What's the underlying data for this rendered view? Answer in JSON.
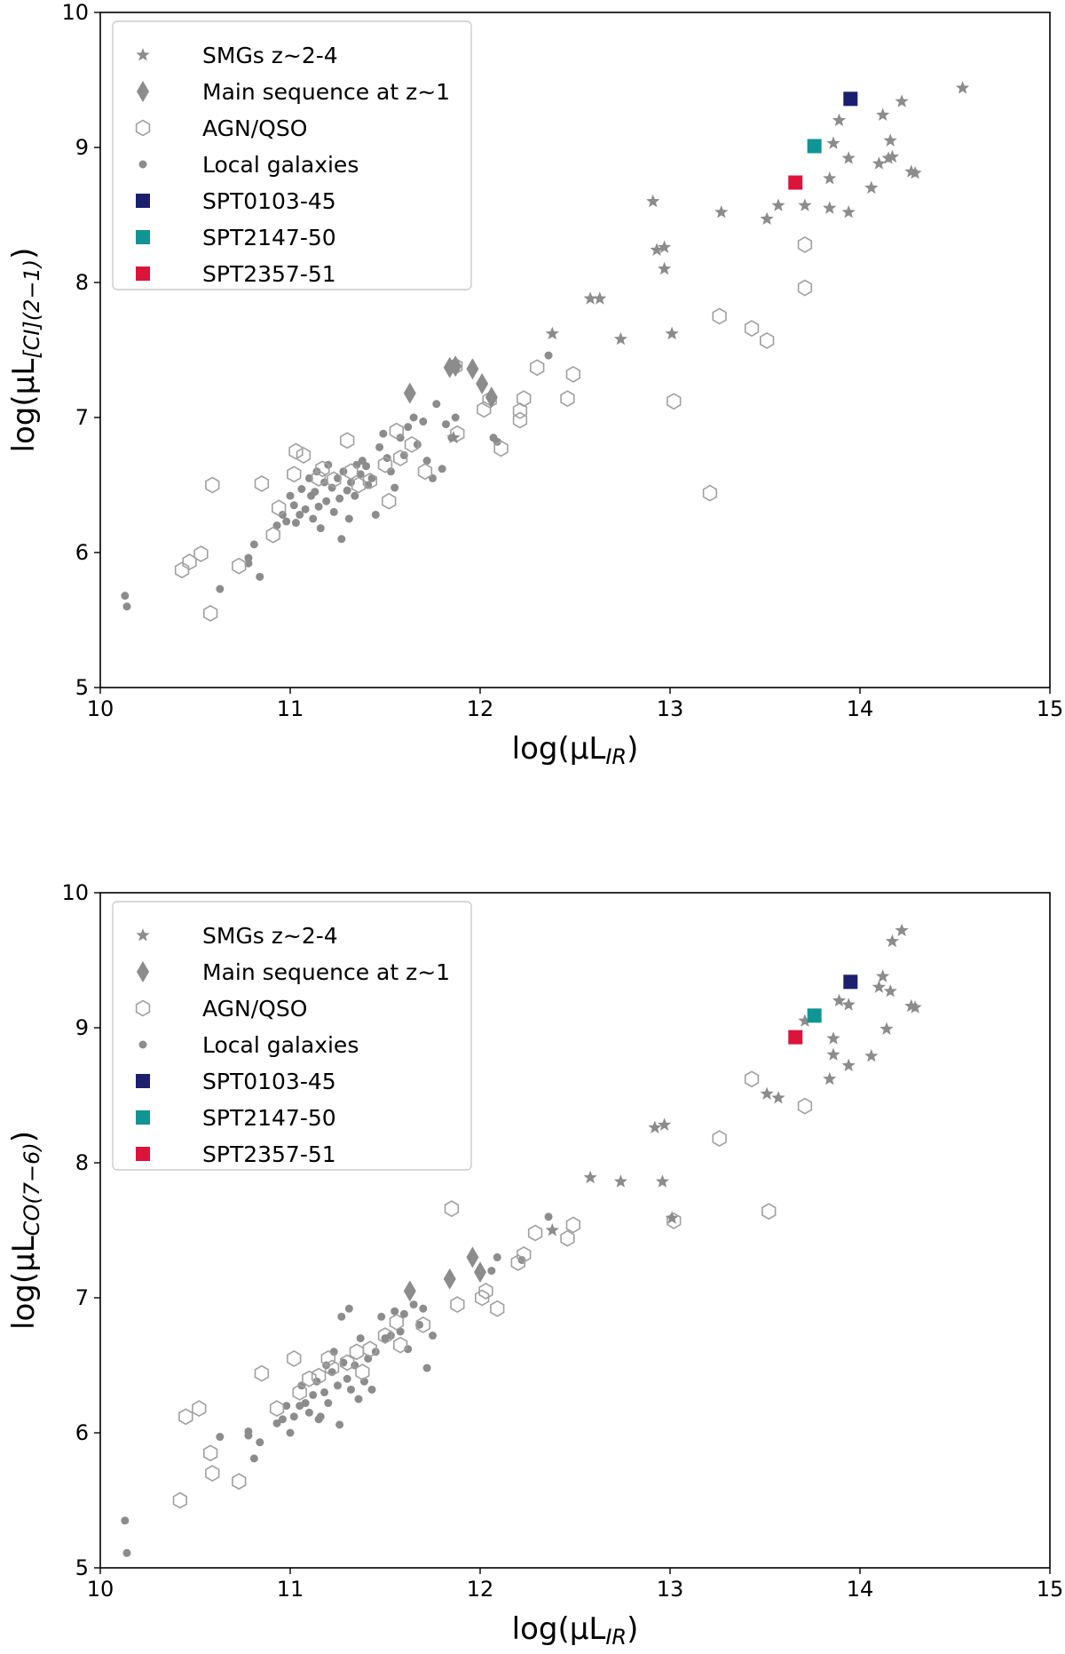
{
  "colors": {
    "gray": "#8c8c8c",
    "gray_light": "#a0a0a0",
    "SPT0103-45": "#1b1f6e",
    "SPT2147-50": "#119494",
    "SPT2357-51": "#dc143c"
  },
  "legend_labels": {
    "smg": "SMGs z~2-4",
    "ms": "Main sequence at z~1",
    "agn": "AGN/QSO",
    "local": "Local galaxies",
    "spt0103": "SPT0103-45",
    "spt2147": "SPT2147-50",
    "spt2357": "SPT2357-51"
  },
  "chart_data": [
    {
      "type": "scatter",
      "ylabel_text": "log(μL",
      "ylabel_sub": "[CI](2−1)",
      "ylabel_close": ")",
      "xlabel_text": "log(μL",
      "xlabel_sub": "IR",
      "xlabel_close": ")",
      "xlim": [
        10,
        15
      ],
      "ylim": [
        5,
        10
      ],
      "xticks": [
        "10",
        "11",
        "12",
        "13",
        "14",
        "15"
      ],
      "yticks": [
        "5",
        "6",
        "7",
        "8",
        "9",
        "10"
      ],
      "legend_position": "upper-left",
      "series": {
        "smg": [
          [
            12.38,
            7.62
          ],
          [
            12.58,
            7.88
          ],
          [
            12.63,
            7.88
          ],
          [
            12.74,
            7.58
          ],
          [
            12.91,
            8.6
          ],
          [
            12.93,
            8.24
          ],
          [
            12.97,
            8.26
          ],
          [
            12.97,
            8.1
          ],
          [
            13.01,
            7.62
          ],
          [
            13.27,
            8.52
          ],
          [
            13.51,
            8.47
          ],
          [
            13.57,
            8.57
          ],
          [
            13.71,
            8.57
          ],
          [
            13.84,
            8.77
          ],
          [
            13.86,
            9.03
          ],
          [
            13.89,
            9.2
          ],
          [
            13.84,
            8.55
          ],
          [
            13.94,
            8.92
          ],
          [
            13.94,
            8.52
          ],
          [
            14.06,
            8.7
          ],
          [
            14.12,
            9.24
          ],
          [
            14.1,
            8.88
          ],
          [
            14.15,
            8.92
          ],
          [
            14.16,
            9.05
          ],
          [
            14.17,
            8.93
          ],
          [
            14.22,
            9.34
          ],
          [
            14.27,
            8.82
          ],
          [
            14.29,
            8.81
          ],
          [
            14.54,
            9.44
          ],
          [
            11.86,
            6.85
          ]
        ],
        "ms": [
          [
            11.63,
            7.18
          ],
          [
            11.84,
            7.37
          ],
          [
            11.87,
            7.38
          ],
          [
            11.96,
            7.36
          ],
          [
            12.01,
            7.25
          ],
          [
            12.06,
            7.15
          ]
        ],
        "agn": [
          [
            10.43,
            5.87
          ],
          [
            10.47,
            5.93
          ],
          [
            10.53,
            5.99
          ],
          [
            10.58,
            5.55
          ],
          [
            10.59,
            6.5
          ],
          [
            10.73,
            5.9
          ],
          [
            10.85,
            6.51
          ],
          [
            10.91,
            6.13
          ],
          [
            10.94,
            6.33
          ],
          [
            11.02,
            6.58
          ],
          [
            11.03,
            6.75
          ],
          [
            11.07,
            6.72
          ],
          [
            11.15,
            6.55
          ],
          [
            11.17,
            6.62
          ],
          [
            11.23,
            6.54
          ],
          [
            11.3,
            6.83
          ],
          [
            11.32,
            6.6
          ],
          [
            11.36,
            6.5
          ],
          [
            11.42,
            6.53
          ],
          [
            11.5,
            6.65
          ],
          [
            11.52,
            6.38
          ],
          [
            11.56,
            6.9
          ],
          [
            11.58,
            6.7
          ],
          [
            11.64,
            6.8
          ],
          [
            11.71,
            6.6
          ],
          [
            11.87,
            7.38
          ],
          [
            11.88,
            6.88
          ],
          [
            12.02,
            7.06
          ],
          [
            12.05,
            7.13
          ],
          [
            12.11,
            6.77
          ],
          [
            12.21,
            6.98
          ],
          [
            12.21,
            7.05
          ],
          [
            12.23,
            7.14
          ],
          [
            12.3,
            7.37
          ],
          [
            12.46,
            7.14
          ],
          [
            12.49,
            7.32
          ],
          [
            13.02,
            7.12
          ],
          [
            13.21,
            6.44
          ],
          [
            13.26,
            7.75
          ],
          [
            13.43,
            7.66
          ],
          [
            13.51,
            7.57
          ],
          [
            13.71,
            8.28
          ],
          [
            13.71,
            7.96
          ]
        ],
        "local": [
          [
            10.13,
            5.68
          ],
          [
            10.14,
            5.6
          ],
          [
            10.63,
            5.73
          ],
          [
            10.78,
            5.92
          ],
          [
            10.78,
            5.96
          ],
          [
            10.81,
            6.06
          ],
          [
            10.84,
            5.82
          ],
          [
            10.93,
            6.2
          ],
          [
            10.96,
            6.28
          ],
          [
            10.98,
            6.23
          ],
          [
            11.0,
            6.42
          ],
          [
            11.02,
            6.35
          ],
          [
            11.03,
            6.22
          ],
          [
            11.05,
            6.28
          ],
          [
            11.06,
            6.47
          ],
          [
            11.08,
            6.32
          ],
          [
            11.1,
            6.55
          ],
          [
            11.11,
            6.42
          ],
          [
            11.12,
            6.25
          ],
          [
            11.13,
            6.45
          ],
          [
            11.14,
            6.6
          ],
          [
            11.15,
            6.34
          ],
          [
            11.16,
            6.18
          ],
          [
            11.18,
            6.52
          ],
          [
            11.19,
            6.38
          ],
          [
            11.2,
            6.65
          ],
          [
            11.22,
            6.48
          ],
          [
            11.23,
            6.3
          ],
          [
            11.25,
            6.55
          ],
          [
            11.26,
            6.4
          ],
          [
            11.27,
            6.1
          ],
          [
            11.28,
            6.6
          ],
          [
            11.3,
            6.46
          ],
          [
            11.31,
            6.25
          ],
          [
            11.32,
            6.52
          ],
          [
            11.34,
            6.42
          ],
          [
            11.35,
            6.65
          ],
          [
            11.37,
            6.58
          ],
          [
            11.38,
            6.68
          ],
          [
            11.4,
            6.64
          ],
          [
            11.41,
            6.5
          ],
          [
            11.43,
            6.55
          ],
          [
            11.45,
            6.28
          ],
          [
            11.47,
            6.78
          ],
          [
            11.49,
            6.88
          ],
          [
            11.51,
            6.7
          ],
          [
            11.53,
            6.6
          ],
          [
            11.55,
            6.48
          ],
          [
            11.58,
            6.85
          ],
          [
            11.6,
            6.72
          ],
          [
            11.62,
            6.93
          ],
          [
            11.65,
            7.0
          ],
          [
            11.67,
            6.8
          ],
          [
            11.7,
            6.97
          ],
          [
            11.72,
            6.68
          ],
          [
            11.75,
            6.55
          ],
          [
            11.77,
            7.1
          ],
          [
            11.8,
            6.62
          ],
          [
            11.82,
            6.95
          ],
          [
            11.85,
            6.85
          ],
          [
            11.87,
            7.0
          ],
          [
            12.07,
            6.85
          ],
          [
            12.09,
            6.82
          ],
          [
            12.36,
            7.46
          ]
        ]
      },
      "spt": {
        "SPT0103-45": [
          13.95,
          9.36
        ],
        "SPT2147-50": [
          13.76,
          9.01
        ],
        "SPT2357-51": [
          13.66,
          8.74
        ]
      }
    },
    {
      "type": "scatter",
      "ylabel_text": "log(μL",
      "ylabel_sub": "CO(7−6)",
      "ylabel_close": ")",
      "xlabel_text": "log(μL",
      "xlabel_sub": "IR",
      "xlabel_close": ")",
      "xlim": [
        10,
        15
      ],
      "ylim": [
        5,
        10
      ],
      "xticks": [
        "10",
        "11",
        "12",
        "13",
        "14",
        "15"
      ],
      "yticks": [
        "5",
        "6",
        "7",
        "8",
        "9",
        "10"
      ],
      "legend_position": "upper-left",
      "series": {
        "smg": [
          [
            12.38,
            7.5
          ],
          [
            12.58,
            7.89
          ],
          [
            12.74,
            7.86
          ],
          [
            12.92,
            8.26
          ],
          [
            12.97,
            8.28
          ],
          [
            12.96,
            7.86
          ],
          [
            13.01,
            7.59
          ],
          [
            13.51,
            8.51
          ],
          [
            13.57,
            8.48
          ],
          [
            13.71,
            9.05
          ],
          [
            13.84,
            8.62
          ],
          [
            13.86,
            8.8
          ],
          [
            13.86,
            8.92
          ],
          [
            13.89,
            9.2
          ],
          [
            13.94,
            9.17
          ],
          [
            13.94,
            8.72
          ],
          [
            14.06,
            8.79
          ],
          [
            14.1,
            9.3
          ],
          [
            14.12,
            9.38
          ],
          [
            14.14,
            8.99
          ],
          [
            14.16,
            9.27
          ],
          [
            14.17,
            9.64
          ],
          [
            14.22,
            9.72
          ],
          [
            14.27,
            9.16
          ],
          [
            14.29,
            9.15
          ]
        ],
        "ms": [
          [
            11.63,
            7.05
          ],
          [
            11.84,
            7.14
          ],
          [
            11.96,
            7.3
          ],
          [
            12.0,
            7.19
          ]
        ],
        "agn": [
          [
            10.42,
            5.5
          ],
          [
            10.45,
            6.12
          ],
          [
            10.52,
            6.18
          ],
          [
            10.58,
            5.85
          ],
          [
            10.59,
            5.7
          ],
          [
            10.73,
            5.64
          ],
          [
            10.85,
            6.44
          ],
          [
            10.93,
            6.18
          ],
          [
            11.02,
            6.55
          ],
          [
            11.05,
            6.3
          ],
          [
            11.1,
            6.4
          ],
          [
            11.15,
            6.42
          ],
          [
            11.2,
            6.55
          ],
          [
            11.22,
            6.48
          ],
          [
            11.3,
            6.52
          ],
          [
            11.35,
            6.6
          ],
          [
            11.38,
            6.45
          ],
          [
            11.42,
            6.62
          ],
          [
            11.5,
            6.72
          ],
          [
            11.56,
            6.82
          ],
          [
            11.58,
            6.65
          ],
          [
            11.7,
            6.8
          ],
          [
            11.85,
            7.66
          ],
          [
            11.88,
            6.95
          ],
          [
            12.01,
            7.0
          ],
          [
            12.03,
            7.05
          ],
          [
            12.09,
            6.92
          ],
          [
            12.2,
            7.26
          ],
          [
            12.23,
            7.32
          ],
          [
            12.29,
            7.48
          ],
          [
            12.46,
            7.44
          ],
          [
            12.49,
            7.54
          ],
          [
            13.02,
            7.57
          ],
          [
            13.26,
            8.18
          ],
          [
            13.43,
            8.62
          ],
          [
            13.52,
            7.64
          ],
          [
            13.71,
            8.42
          ]
        ],
        "local": [
          [
            10.13,
            5.35
          ],
          [
            10.14,
            5.11
          ],
          [
            10.63,
            5.97
          ],
          [
            10.78,
            5.98
          ],
          [
            10.78,
            6.01
          ],
          [
            10.81,
            5.81
          ],
          [
            10.84,
            5.93
          ],
          [
            10.93,
            6.07
          ],
          [
            10.96,
            6.1
          ],
          [
            10.98,
            6.2
          ],
          [
            11.0,
            6.0
          ],
          [
            11.02,
            6.12
          ],
          [
            11.05,
            6.2
          ],
          [
            11.06,
            6.35
          ],
          [
            11.08,
            6.22
          ],
          [
            11.1,
            6.15
          ],
          [
            11.12,
            6.28
          ],
          [
            11.14,
            6.38
          ],
          [
            11.15,
            6.1
          ],
          [
            11.16,
            6.12
          ],
          [
            11.18,
            6.3
          ],
          [
            11.19,
            6.5
          ],
          [
            11.2,
            6.22
          ],
          [
            11.22,
            6.45
          ],
          [
            11.23,
            6.6
          ],
          [
            11.25,
            6.35
          ],
          [
            11.26,
            6.06
          ],
          [
            11.27,
            6.86
          ],
          [
            11.28,
            6.52
          ],
          [
            11.3,
            6.4
          ],
          [
            11.31,
            6.92
          ],
          [
            11.32,
            6.32
          ],
          [
            11.34,
            6.5
          ],
          [
            11.36,
            6.25
          ],
          [
            11.37,
            6.7
          ],
          [
            11.39,
            6.38
          ],
          [
            11.41,
            6.55
          ],
          [
            11.43,
            6.32
          ],
          [
            11.45,
            6.6
          ],
          [
            11.48,
            6.86
          ],
          [
            11.5,
            6.7
          ],
          [
            11.53,
            6.72
          ],
          [
            11.55,
            6.9
          ],
          [
            11.58,
            6.75
          ],
          [
            11.6,
            6.88
          ],
          [
            11.62,
            6.62
          ],
          [
            11.65,
            6.95
          ],
          [
            11.68,
            6.8
          ],
          [
            11.7,
            6.92
          ],
          [
            11.72,
            6.48
          ],
          [
            11.75,
            6.72
          ],
          [
            12.06,
            7.2
          ],
          [
            12.09,
            7.3
          ],
          [
            12.36,
            7.6
          ],
          [
            12.22,
            7.28
          ]
        ]
      },
      "spt": {
        "SPT0103-45": [
          13.95,
          9.34
        ],
        "SPT2147-50": [
          13.76,
          9.09
        ],
        "SPT2357-51": [
          13.66,
          8.93
        ]
      }
    }
  ]
}
